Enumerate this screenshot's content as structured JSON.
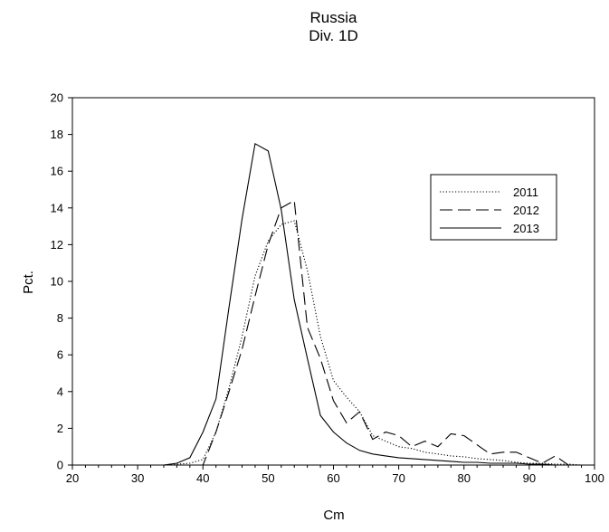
{
  "chart_data": {
    "type": "line",
    "title": [
      "Russia",
      "Div. 1D"
    ],
    "xlabel": "Cm",
    "ylabel": "Pct.",
    "xlim": [
      20,
      100
    ],
    "ylim": [
      0,
      20
    ],
    "xticks": [
      20,
      30,
      40,
      50,
      60,
      70,
      80,
      90,
      100
    ],
    "yticks": [
      0,
      2,
      4,
      6,
      8,
      10,
      12,
      14,
      16,
      18,
      20
    ],
    "grid": false,
    "legend_position": "top-right",
    "series": [
      {
        "name": "2011",
        "style": "dotted",
        "x": [
          20,
          22,
          24,
          26,
          28,
          30,
          32,
          34,
          36,
          38,
          40,
          42,
          44,
          46,
          48,
          50,
          52,
          54,
          56,
          58,
          60,
          62,
          64,
          66,
          68,
          70,
          72,
          74,
          76,
          78,
          80,
          82,
          84,
          86,
          88,
          90,
          92,
          94,
          96,
          98,
          100
        ],
        "y": [
          0,
          0,
          0,
          0,
          0,
          0,
          0,
          0,
          0.05,
          0.1,
          0.3,
          1.8,
          4.2,
          7.0,
          10.3,
          12.2,
          13.1,
          13.3,
          10.6,
          7.0,
          4.6,
          3.7,
          2.9,
          1.6,
          1.3,
          1.0,
          0.9,
          0.7,
          0.6,
          0.5,
          0.45,
          0.35,
          0.3,
          0.25,
          0.15,
          0.1,
          0.1,
          0.05,
          0.05,
          0,
          0
        ]
      },
      {
        "name": "2012",
        "style": "dashed",
        "x": [
          20,
          22,
          24,
          26,
          28,
          30,
          32,
          34,
          36,
          38,
          40,
          42,
          44,
          46,
          48,
          50,
          52,
          54,
          56,
          58,
          60,
          62,
          64,
          66,
          68,
          70,
          72,
          74,
          76,
          78,
          80,
          82,
          84,
          86,
          88,
          90,
          92,
          94,
          96,
          98,
          100
        ],
        "y": [
          0,
          0,
          0,
          0,
          0,
          0,
          0,
          0,
          0,
          0,
          0,
          1.8,
          4.0,
          6.3,
          9.2,
          12.0,
          14.0,
          14.4,
          7.5,
          5.8,
          3.5,
          2.3,
          2.9,
          1.4,
          1.8,
          1.6,
          1.0,
          1.3,
          1.0,
          1.7,
          1.6,
          1.1,
          0.6,
          0.7,
          0.7,
          0.4,
          0.1,
          0.5,
          0,
          0,
          0
        ]
      },
      {
        "name": "2013",
        "style": "solid",
        "x": [
          20,
          22,
          24,
          26,
          28,
          30,
          32,
          34,
          36,
          38,
          40,
          42,
          44,
          46,
          48,
          50,
          52,
          54,
          56,
          58,
          60,
          62,
          64,
          66,
          68,
          70,
          72,
          74,
          76,
          78,
          80,
          82,
          84,
          86,
          88,
          90,
          92,
          94,
          96,
          98,
          100
        ],
        "y": [
          0,
          0,
          0,
          0,
          0,
          0,
          0,
          0,
          0.1,
          0.4,
          1.8,
          3.6,
          8.6,
          13.4,
          17.5,
          17.1,
          13.9,
          9.0,
          5.8,
          2.7,
          1.8,
          1.2,
          0.8,
          0.6,
          0.5,
          0.4,
          0.35,
          0.3,
          0.25,
          0.2,
          0.15,
          0.15,
          0.1,
          0.1,
          0.1,
          0.05,
          0.05,
          0,
          0,
          0,
          0
        ]
      }
    ]
  }
}
